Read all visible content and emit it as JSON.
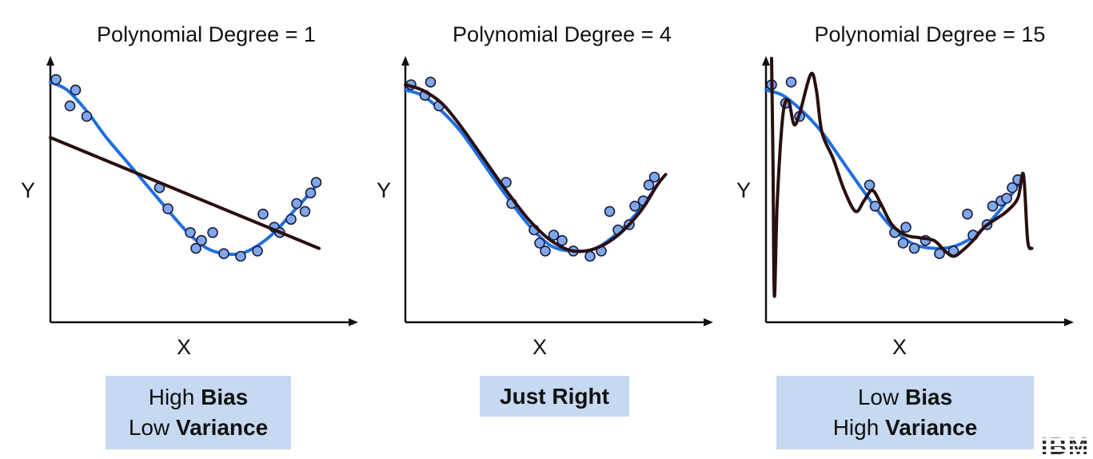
{
  "chart_data": [
    {
      "type": "scatter",
      "title": "Polynomial Degree = 1",
      "xlabel": "X",
      "ylabel": "Y",
      "points": [
        [
          0.02,
          0.92
        ],
        [
          0.07,
          0.82
        ],
        [
          0.09,
          0.88
        ],
        [
          0.13,
          0.78
        ],
        [
          0.39,
          0.51
        ],
        [
          0.42,
          0.43
        ],
        [
          0.5,
          0.34
        ],
        [
          0.52,
          0.28
        ],
        [
          0.54,
          0.31
        ],
        [
          0.58,
          0.34
        ],
        [
          0.62,
          0.26
        ],
        [
          0.68,
          0.25
        ],
        [
          0.74,
          0.27
        ],
        [
          0.76,
          0.41
        ],
        [
          0.8,
          0.36
        ],
        [
          0.82,
          0.34
        ],
        [
          0.86,
          0.39
        ],
        [
          0.88,
          0.45
        ],
        [
          0.91,
          0.42
        ],
        [
          0.93,
          0.49
        ],
        [
          0.95,
          0.53
        ]
      ],
      "series": [
        {
          "name": "",
          "values": [
            [
              0.0,
              0.91
            ],
            [
              0.06,
              0.88
            ],
            [
              0.13,
              0.8
            ],
            [
              0.2,
              0.7
            ],
            [
              0.28,
              0.6
            ],
            [
              0.36,
              0.5
            ],
            [
              0.44,
              0.4
            ],
            [
              0.5,
              0.33
            ],
            [
              0.56,
              0.28
            ],
            [
              0.62,
              0.26
            ],
            [
              0.68,
              0.26
            ],
            [
              0.74,
              0.29
            ],
            [
              0.8,
              0.34
            ],
            [
              0.86,
              0.41
            ],
            [
              0.92,
              0.48
            ],
            [
              0.96,
              0.53
            ]
          ]
        },
        {
          "name": "",
          "values": [
            [
              0.0,
              0.7
            ],
            [
              0.96,
              0.28
            ]
          ]
        }
      ],
      "caption": {
        "line1_a": "High ",
        "line1_b": "Bias",
        "line2_a": "Low ",
        "line2_b": "Variance"
      }
    },
    {
      "type": "scatter",
      "title": "Polynomial Degree = 4",
      "xlabel": "X",
      "ylabel": "Y",
      "points": [
        [
          0.02,
          0.9
        ],
        [
          0.07,
          0.86
        ],
        [
          0.09,
          0.91
        ],
        [
          0.12,
          0.82
        ],
        [
          0.36,
          0.53
        ],
        [
          0.38,
          0.45
        ],
        [
          0.46,
          0.35
        ],
        [
          0.48,
          0.3
        ],
        [
          0.5,
          0.27
        ],
        [
          0.53,
          0.33
        ],
        [
          0.56,
          0.31
        ],
        [
          0.6,
          0.27
        ],
        [
          0.66,
          0.25
        ],
        [
          0.7,
          0.27
        ],
        [
          0.73,
          0.42
        ],
        [
          0.76,
          0.35
        ],
        [
          0.8,
          0.37
        ],
        [
          0.82,
          0.44
        ],
        [
          0.85,
          0.46
        ],
        [
          0.87,
          0.52
        ],
        [
          0.89,
          0.55
        ]
      ],
      "series": [
        {
          "name": "",
          "values": [
            [
              0.0,
              0.88
            ],
            [
              0.06,
              0.86
            ],
            [
              0.13,
              0.8
            ],
            [
              0.2,
              0.72
            ],
            [
              0.28,
              0.6
            ],
            [
              0.36,
              0.48
            ],
            [
              0.44,
              0.37
            ],
            [
              0.52,
              0.29
            ],
            [
              0.6,
              0.27
            ],
            [
              0.68,
              0.28
            ],
            [
              0.76,
              0.34
            ],
            [
              0.84,
              0.43
            ],
            [
              0.9,
              0.52
            ]
          ]
        },
        {
          "name": "",
          "values": [
            [
              0.0,
              0.9
            ],
            [
              0.06,
              0.88
            ],
            [
              0.13,
              0.83
            ],
            [
              0.2,
              0.74
            ],
            [
              0.28,
              0.62
            ],
            [
              0.36,
              0.5
            ],
            [
              0.44,
              0.39
            ],
            [
              0.52,
              0.31
            ],
            [
              0.6,
              0.27
            ],
            [
              0.68,
              0.28
            ],
            [
              0.76,
              0.33
            ],
            [
              0.84,
              0.42
            ],
            [
              0.9,
              0.52
            ],
            [
              0.93,
              0.56
            ]
          ]
        }
      ],
      "caption": {
        "line1_a": "",
        "line1_b": "Just Right",
        "line2_a": "",
        "line2_b": ""
      }
    },
    {
      "type": "scatter",
      "title": "Polynomial Degree = 15",
      "xlabel": "X",
      "ylabel": "Y",
      "points": [
        [
          0.02,
          0.9
        ],
        [
          0.07,
          0.83
        ],
        [
          0.09,
          0.91
        ],
        [
          0.12,
          0.78
        ],
        [
          0.37,
          0.52
        ],
        [
          0.39,
          0.44
        ],
        [
          0.46,
          0.34
        ],
        [
          0.49,
          0.3
        ],
        [
          0.5,
          0.36
        ],
        [
          0.53,
          0.28
        ],
        [
          0.57,
          0.31
        ],
        [
          0.62,
          0.26
        ],
        [
          0.67,
          0.27
        ],
        [
          0.72,
          0.41
        ],
        [
          0.74,
          0.33
        ],
        [
          0.79,
          0.37
        ],
        [
          0.81,
          0.44
        ],
        [
          0.84,
          0.46
        ],
        [
          0.86,
          0.47
        ],
        [
          0.88,
          0.51
        ],
        [
          0.9,
          0.54
        ]
      ],
      "series": [
        {
          "name": "",
          "values": [
            [
              0.0,
              0.88
            ],
            [
              0.06,
              0.86
            ],
            [
              0.13,
              0.8
            ],
            [
              0.2,
              0.72
            ],
            [
              0.28,
              0.6
            ],
            [
              0.36,
              0.48
            ],
            [
              0.44,
              0.37
            ],
            [
              0.52,
              0.3
            ],
            [
              0.6,
              0.28
            ],
            [
              0.68,
              0.29
            ],
            [
              0.76,
              0.34
            ],
            [
              0.84,
              0.43
            ],
            [
              0.9,
              0.52
            ]
          ]
        },
        {
          "name": "",
          "values": [
            [
              0.02,
              1.0
            ],
            [
              0.025,
              0.6
            ],
            [
              0.03,
              0.1
            ],
            [
              0.04,
              0.45
            ],
            [
              0.06,
              0.78
            ],
            [
              0.08,
              0.84
            ],
            [
              0.1,
              0.75
            ],
            [
              0.12,
              0.79
            ],
            [
              0.16,
              0.94
            ],
            [
              0.18,
              0.88
            ],
            [
              0.2,
              0.72
            ],
            [
              0.24,
              0.62
            ],
            [
              0.28,
              0.5
            ],
            [
              0.32,
              0.42
            ],
            [
              0.35,
              0.46
            ],
            [
              0.38,
              0.5
            ],
            [
              0.41,
              0.45
            ],
            [
              0.45,
              0.37
            ],
            [
              0.5,
              0.33
            ],
            [
              0.55,
              0.32
            ],
            [
              0.6,
              0.31
            ],
            [
              0.64,
              0.27
            ],
            [
              0.67,
              0.25
            ],
            [
              0.7,
              0.27
            ],
            [
              0.74,
              0.31
            ],
            [
              0.78,
              0.36
            ],
            [
              0.82,
              0.39
            ],
            [
              0.86,
              0.42
            ],
            [
              0.9,
              0.47
            ],
            [
              0.92,
              0.56
            ],
            [
              0.935,
              0.31
            ],
            [
              0.95,
              0.28
            ]
          ]
        }
      ],
      "caption": {
        "line1_a": "Low ",
        "line1_b": "Bias",
        "line2_a": "High ",
        "line2_b": "Variance"
      }
    }
  ],
  "colors": {
    "true_curve": "#1f6fe0",
    "fit_curve": "#2a0f10",
    "point_fill": "#7fa8ec",
    "point_stroke": "#1b1b3a",
    "axis": "#111111",
    "caption_bg": "#c5d9f1"
  },
  "logo_text": "IBM"
}
